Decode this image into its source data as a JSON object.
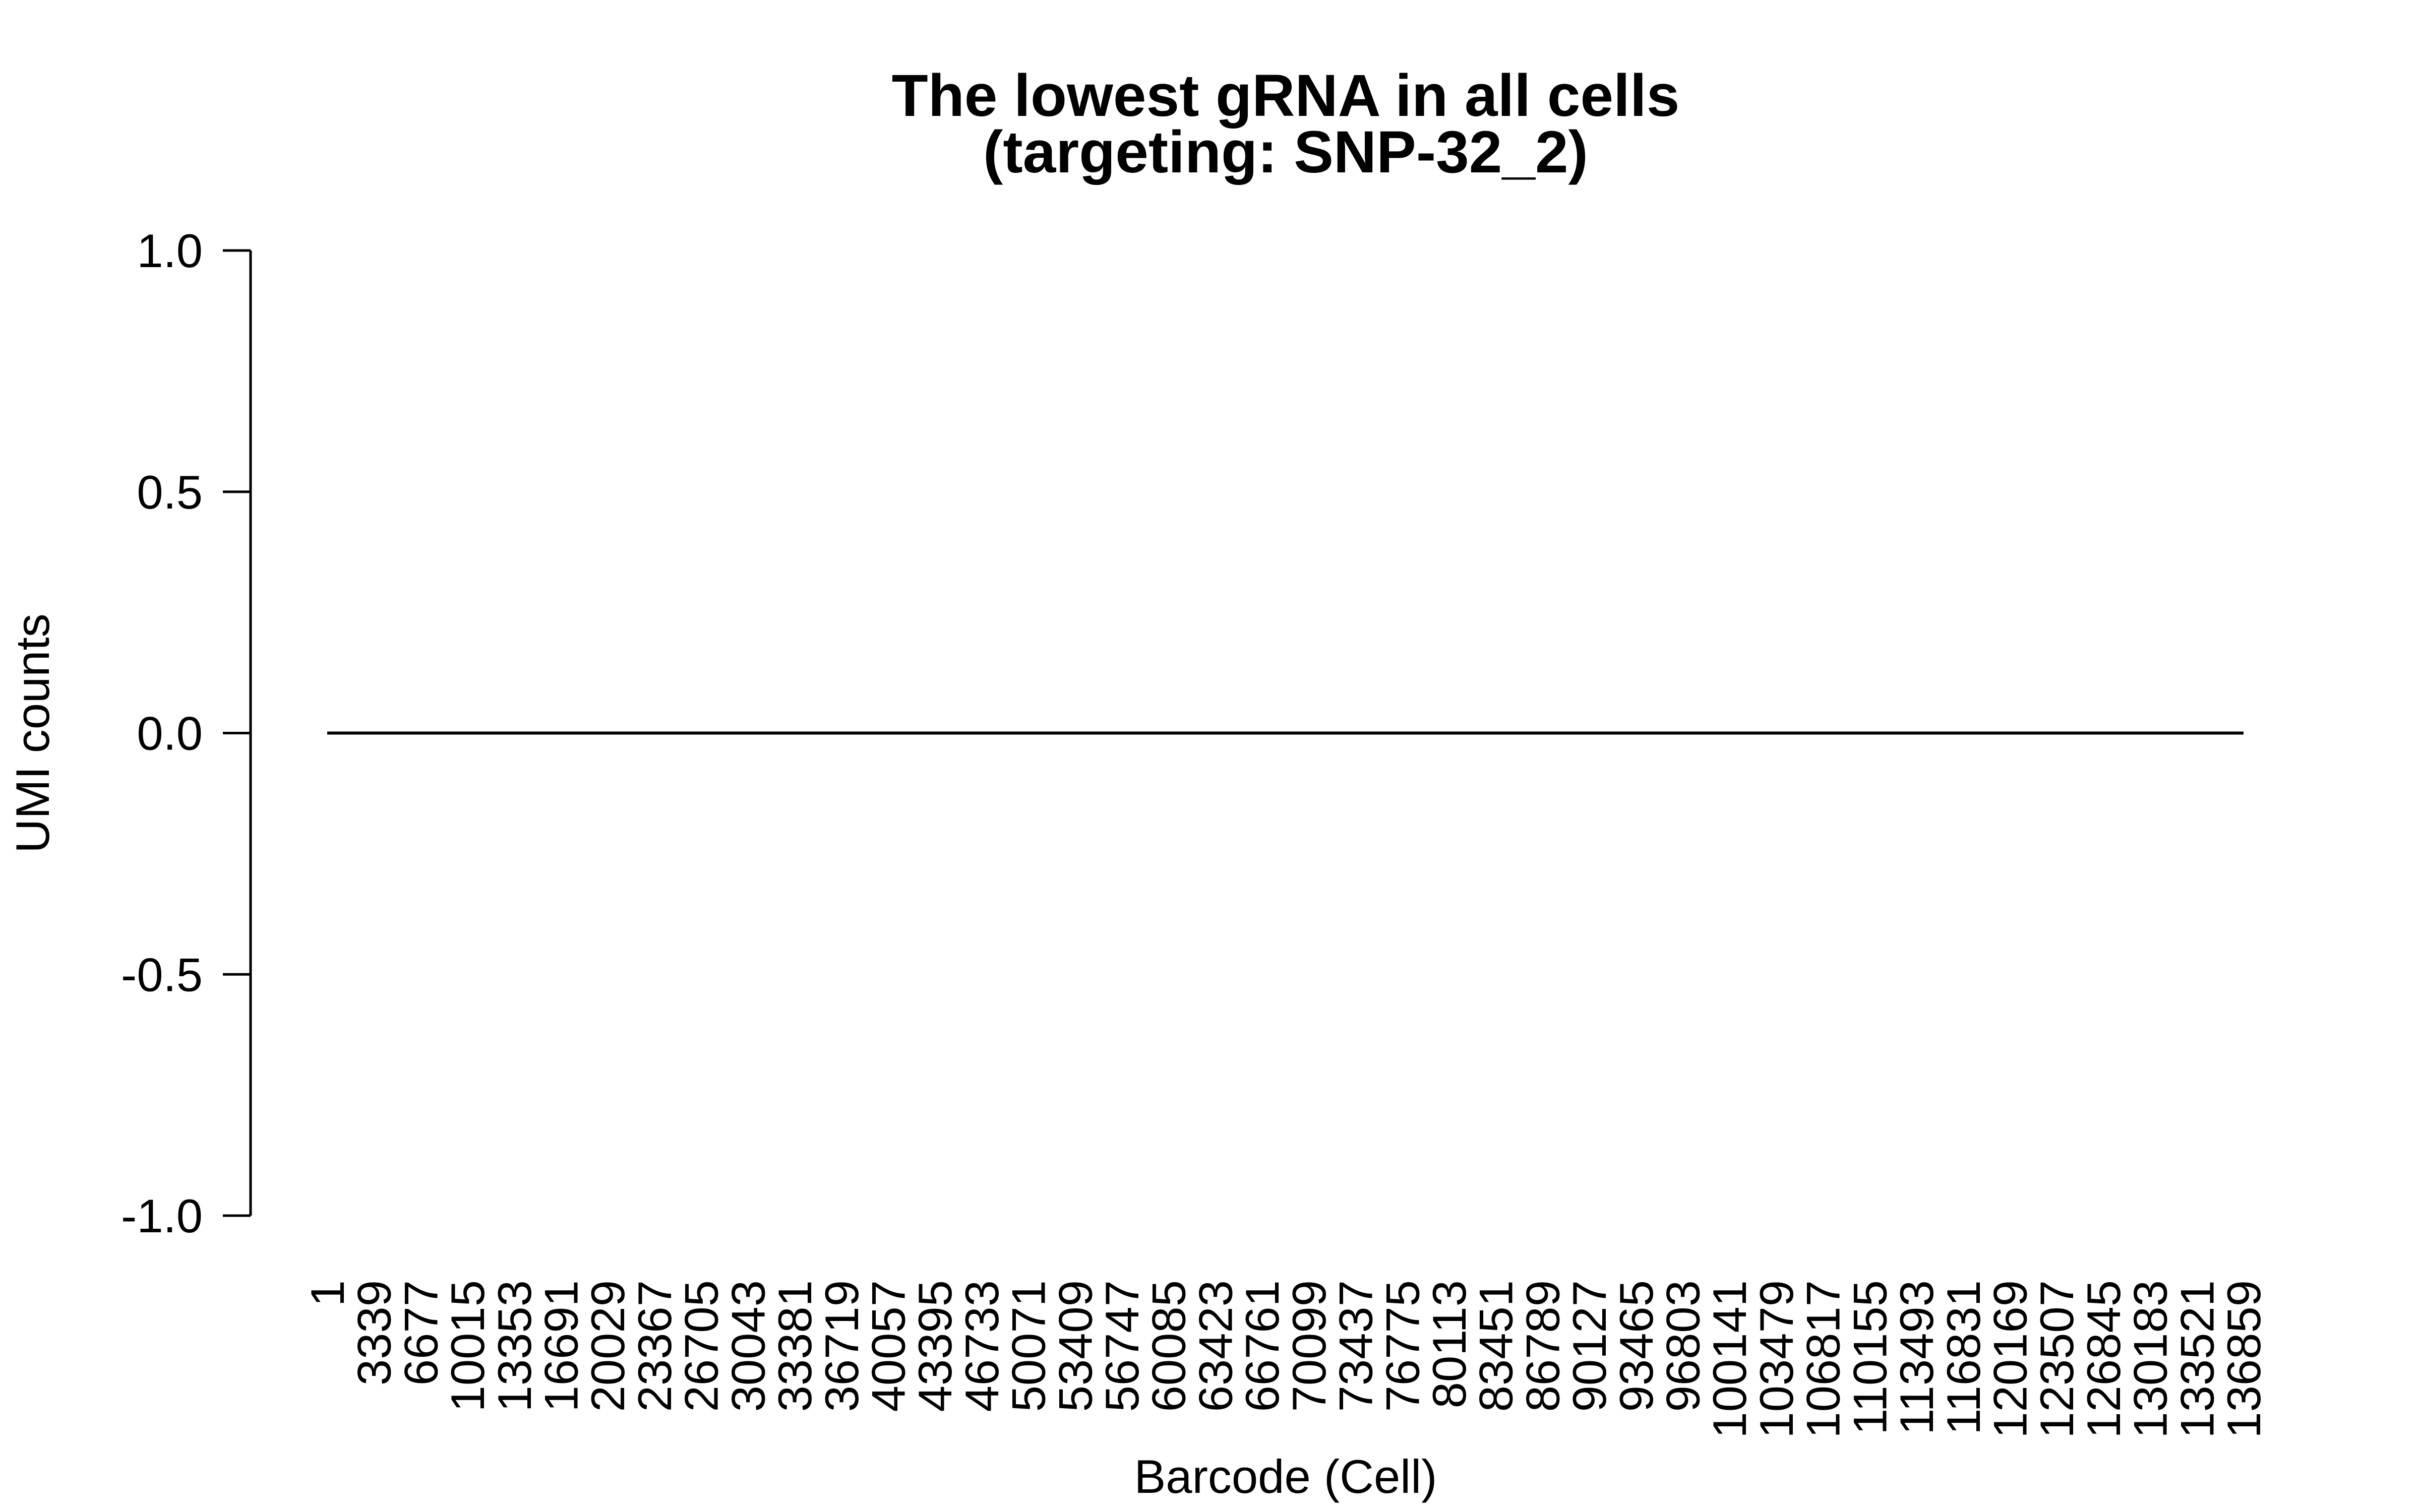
{
  "chart_data": {
    "type": "line",
    "title": "The lowest gRNA in all cells",
    "subtitle": "(targeting: SNP-32_2)",
    "xlabel": "Barcode (Cell)",
    "ylabel": "UMI counts",
    "ylim": [
      -1.0,
      1.0
    ],
    "xlim": [
      1,
      136859
    ],
    "y_ticks": [
      -1.0,
      -0.5,
      0.0,
      0.5,
      1.0
    ],
    "y_tick_labels": [
      "-1.0",
      "-0.5",
      "0.0",
      "0.5",
      "1.0"
    ],
    "x_tick_labels": [
      "1",
      "3339",
      "6677",
      "10015",
      "13353",
      "16691",
      "20029",
      "23367",
      "26705",
      "30043",
      "33381",
      "36719",
      "40057",
      "43395",
      "46733",
      "50071",
      "53409",
      "56747",
      "60085",
      "63423",
      "66761",
      "70099",
      "73437",
      "76775",
      "80113",
      "83451",
      "86789",
      "90127",
      "93465",
      "96803",
      "100141",
      "103479",
      "106817",
      "110155",
      "113493",
      "116831",
      "120169",
      "123507",
      "126845",
      "130183",
      "133521",
      "136859"
    ],
    "series": [
      {
        "x": [
          1,
          136859
        ],
        "y": [
          0,
          0
        ],
        "color": "#000000"
      }
    ],
    "grid": false
  }
}
